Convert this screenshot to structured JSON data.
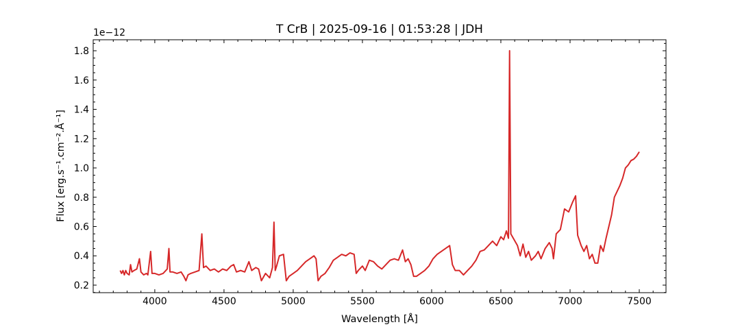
{
  "chart_data": {
    "type": "line",
    "title": "T CrB | 2025-09-16 | 01:53:28 | JDH",
    "xlabel": "Wavelength [Å]",
    "ylabel": "Flux [erg.s⁻¹.cm⁻².Å⁻¹]",
    "y_offset_label": "1e−12",
    "color": "#d62728",
    "minor_ticks": true,
    "xlim": [
      3555,
      7693
    ],
    "ylim": [
      0.1485,
      1.875
    ],
    "xticks": [
      4000,
      4500,
      5000,
      5500,
      6000,
      6500,
      7000,
      7500
    ],
    "yticks": [
      0.2,
      0.4,
      0.6,
      0.8,
      {
        "value": 1,
        "label": "1.0"
      },
      1.2,
      1.4,
      1.6,
      1.8
    ],
    "x": [
      3750,
      3760,
      3770,
      3780,
      3790,
      3800,
      3815,
      3825,
      3835,
      3850,
      3870,
      3889,
      3900,
      3920,
      3940,
      3950,
      3970,
      3980,
      4000,
      4030,
      4060,
      4090,
      4102,
      4110,
      4130,
      4160,
      4190,
      4210,
      4225,
      4240,
      4260,
      4290,
      4320,
      4340,
      4352,
      4370,
      4400,
      4430,
      4460,
      4490,
      4520,
      4550,
      4570,
      4590,
      4620,
      4650,
      4680,
      4700,
      4730,
      4750,
      4770,
      4800,
      4830,
      4850,
      4861,
      4870,
      4880,
      4900,
      4930,
      4950,
      4970,
      5000,
      5030,
      5060,
      5090,
      5120,
      5150,
      5165,
      5180,
      5200,
      5230,
      5260,
      5290,
      5320,
      5350,
      5380,
      5410,
      5440,
      5455,
      5470,
      5500,
      5520,
      5550,
      5580,
      5610,
      5640,
      5670,
      5700,
      5730,
      5760,
      5790,
      5810,
      5830,
      5850,
      5870,
      5890,
      5920,
      5950,
      5980,
      6010,
      6040,
      6070,
      6100,
      6130,
      6150,
      6170,
      6200,
      6230,
      6260,
      6290,
      6320,
      6350,
      6380,
      6410,
      6440,
      6470,
      6500,
      6520,
      6540,
      6555,
      6563,
      6572,
      6590,
      6620,
      6640,
      6660,
      6680,
      6700,
      6720,
      6750,
      6770,
      6790,
      6820,
      6850,
      6870,
      6880,
      6900,
      6930,
      6960,
      6990,
      7020,
      7040,
      7055,
      7080,
      7100,
      7120,
      7140,
      7160,
      7180,
      7200,
      7220,
      7240,
      7260,
      7280,
      7300,
      7320,
      7340,
      7360,
      7380,
      7400,
      7420,
      7440,
      7460,
      7480,
      7500
    ],
    "values": [
      0.3,
      0.28,
      0.3,
      0.27,
      0.3,
      0.28,
      0.27,
      0.34,
      0.29,
      0.3,
      0.31,
      0.38,
      0.29,
      0.27,
      0.28,
      0.27,
      0.43,
      0.28,
      0.28,
      0.27,
      0.28,
      0.31,
      0.45,
      0.29,
      0.29,
      0.28,
      0.29,
      0.26,
      0.23,
      0.27,
      0.28,
      0.29,
      0.3,
      0.55,
      0.32,
      0.33,
      0.3,
      0.31,
      0.29,
      0.31,
      0.3,
      0.33,
      0.34,
      0.29,
      0.3,
      0.29,
      0.36,
      0.3,
      0.32,
      0.31,
      0.23,
      0.28,
      0.25,
      0.32,
      0.63,
      0.3,
      0.33,
      0.4,
      0.41,
      0.23,
      0.26,
      0.28,
      0.3,
      0.33,
      0.36,
      0.38,
      0.4,
      0.38,
      0.23,
      0.26,
      0.28,
      0.32,
      0.37,
      0.39,
      0.41,
      0.4,
      0.42,
      0.41,
      0.28,
      0.3,
      0.33,
      0.3,
      0.37,
      0.36,
      0.33,
      0.31,
      0.34,
      0.37,
      0.38,
      0.37,
      0.44,
      0.36,
      0.38,
      0.34,
      0.26,
      0.26,
      0.28,
      0.3,
      0.33,
      0.38,
      0.41,
      0.43,
      0.45,
      0.47,
      0.34,
      0.3,
      0.3,
      0.27,
      0.3,
      0.33,
      0.37,
      0.43,
      0.44,
      0.47,
      0.5,
      0.47,
      0.53,
      0.51,
      0.57,
      0.52,
      1.8,
      0.55,
      0.52,
      0.47,
      0.4,
      0.48,
      0.39,
      0.43,
      0.37,
      0.4,
      0.43,
      0.38,
      0.45,
      0.49,
      0.45,
      0.38,
      0.55,
      0.58,
      0.72,
      0.7,
      0.77,
      0.81,
      0.54,
      0.47,
      0.43,
      0.47,
      0.38,
      0.41,
      0.35,
      0.35,
      0.47,
      0.43,
      0.52,
      0.6,
      0.68,
      0.8,
      0.84,
      0.88,
      0.93,
      1.0,
      1.02,
      1.05,
      1.06,
      1.08,
      1.11
    ]
  }
}
